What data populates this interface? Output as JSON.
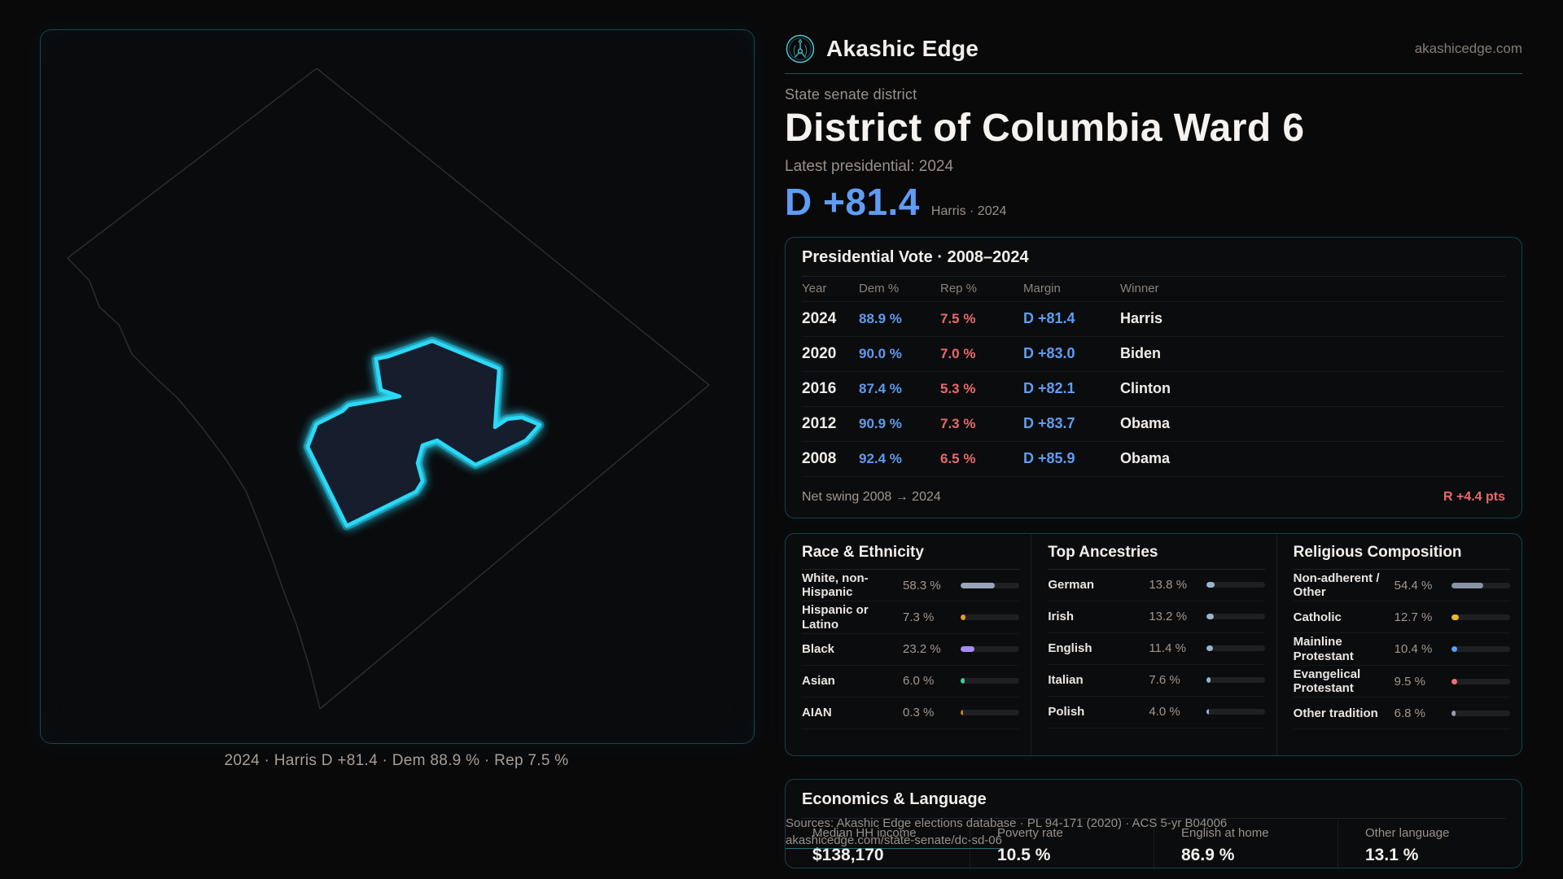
{
  "brand": {
    "name": "Akashic Edge",
    "domain": "akashicedge.com"
  },
  "header": {
    "kicker": "State senate district",
    "title": "District of Columbia Ward 6",
    "latest": "Latest presidential: 2024",
    "margin": "D +81.4",
    "margin_caption": "Harris · 2024"
  },
  "map": {
    "caption": "2024 · Harris D +81.4 · Dem 88.9 % · Rep 7.5 %"
  },
  "vote_table": {
    "title": "Presidential Vote · 2008–2024",
    "columns": [
      "Year",
      "Dem %",
      "Rep %",
      "Margin",
      "Winner"
    ],
    "rows": [
      {
        "year": "2024",
        "dem": "88.9 %",
        "rep": "7.5 %",
        "margin": "D +81.4",
        "winner": "Harris"
      },
      {
        "year": "2020",
        "dem": "90.0 %",
        "rep": "7.0 %",
        "margin": "D +83.0",
        "winner": "Biden"
      },
      {
        "year": "2016",
        "dem": "87.4 %",
        "rep": "5.3 %",
        "margin": "D +82.1",
        "winner": "Clinton"
      },
      {
        "year": "2012",
        "dem": "90.9 %",
        "rep": "7.3 %",
        "margin": "D +83.7",
        "winner": "Obama"
      },
      {
        "year": "2008",
        "dem": "92.4 %",
        "rep": "6.5 %",
        "margin": "D +85.9",
        "winner": "Obama"
      }
    ],
    "footer_label": "Net swing 2008 → 2024",
    "footer_value": "R +4.4 pts"
  },
  "demographics": {
    "race": {
      "title": "Race & Ethnicity",
      "rows": [
        {
          "label": "White, non-Hispanic",
          "value": "58.3 %",
          "pct": 58.3,
          "color": "#9aa5bd"
        },
        {
          "label": "Hispanic or Latino",
          "value": "7.3 %",
          "pct": 7.3,
          "color": "#e09b3d"
        },
        {
          "label": "Black",
          "value": "23.2 %",
          "pct": 23.2,
          "color": "#a78bfa"
        },
        {
          "label": "Asian",
          "value": "6.0 %",
          "pct": 6.0,
          "color": "#3ecf8e"
        },
        {
          "label": "AIAN",
          "value": "0.3 %",
          "pct": 0.3,
          "color": "#c97d28"
        }
      ]
    },
    "ancestries": {
      "title": "Top Ancestries",
      "rows": [
        {
          "label": "German",
          "value": "13.8 %",
          "pct": 13.8,
          "color": "#9ab4cc"
        },
        {
          "label": "Irish",
          "value": "13.2 %",
          "pct": 13.2,
          "color": "#9ab4cc"
        },
        {
          "label": "English",
          "value": "11.4 %",
          "pct": 11.4,
          "color": "#9ab4cc"
        },
        {
          "label": "Italian",
          "value": "7.6 %",
          "pct": 7.6,
          "color": "#9ab4cc"
        },
        {
          "label": "Polish",
          "value": "4.0 %",
          "pct": 4.0,
          "color": "#9ab4cc"
        }
      ]
    },
    "religion": {
      "title": "Religious Composition",
      "rows": [
        {
          "label": "Non-adherent / Other",
          "value": "54.4 %",
          "pct": 54.4,
          "color": "#8a93a5"
        },
        {
          "label": "Catholic",
          "value": "12.7 %",
          "pct": 12.7,
          "color": "#e8b931"
        },
        {
          "label": "Mainline Protestant",
          "value": "10.4 %",
          "pct": 10.4,
          "color": "#5f9ff5"
        },
        {
          "label": "Evangelical Protestant",
          "value": "9.5 %",
          "pct": 9.5,
          "color": "#ee7272"
        },
        {
          "label": "Other tradition",
          "value": "6.8 %",
          "pct": 6.8,
          "color": "#97a0ab"
        }
      ]
    }
  },
  "economics": {
    "title": "Economics & Language",
    "stats": [
      {
        "label": "Median HH income",
        "value": "$138,170"
      },
      {
        "label": "Poverty rate",
        "value": "10.5 %"
      },
      {
        "label": "English at home",
        "value": "86.9 %"
      },
      {
        "label": "Other language",
        "value": "13.1 %"
      }
    ]
  },
  "footer": {
    "line1": "Sources: Akashic Edge elections database · PL 94-171 (2020) · ACS 5-yr B04006",
    "line2": "akashicedge.com/state-senate/dc-sd-06"
  },
  "theme": {
    "accent_cyan": "#2bd9f7",
    "dem_blue": "#5f9df5",
    "rep_red": "#e96a6a"
  }
}
